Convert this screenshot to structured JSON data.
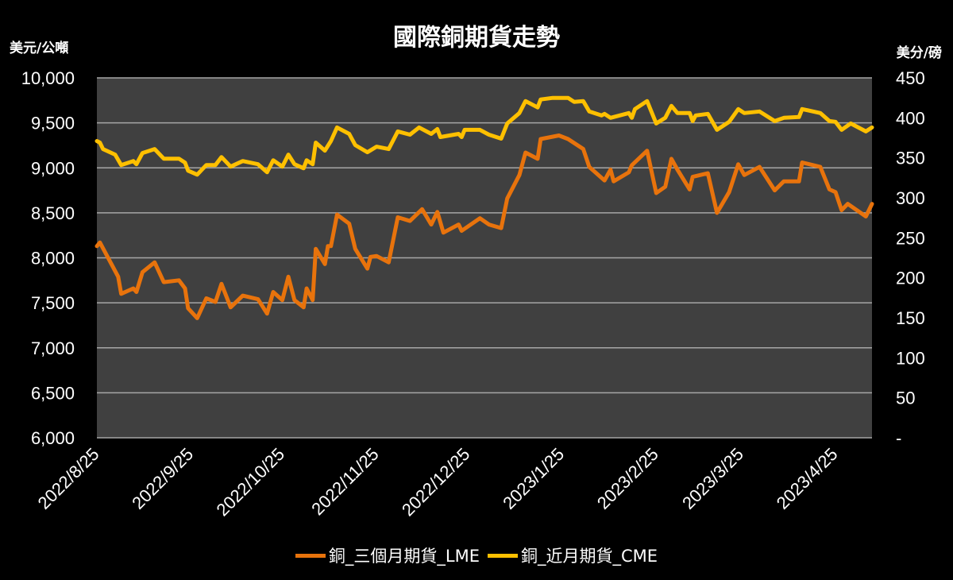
{
  "chart_data": {
    "type": "line",
    "title": "國際銅期貨走勢",
    "y_left_label": "美元/公噸",
    "y_right_label": "美分/磅",
    "x_range": [
      "2022-08-25",
      "2023-05-07"
    ],
    "x_tick_labels": [
      "2022/8/25",
      "2022/9/25",
      "2022/10/25",
      "2022/11/25",
      "2022/12/25",
      "2023/1/25",
      "2023/2/25",
      "2023/3/25",
      "2023/4/25"
    ],
    "x_tick_dates": [
      "2022-08-25",
      "2022-09-25",
      "2022-10-25",
      "2022-11-25",
      "2022-12-25",
      "2023-01-25",
      "2023-02-25",
      "2023-03-25",
      "2023-04-25"
    ],
    "y_left_range": [
      6000,
      10000
    ],
    "y_left_ticks": [
      "6,000",
      "6,500",
      "7,000",
      "7,500",
      "8,000",
      "8,500",
      "9,000",
      "9,500",
      "10,000"
    ],
    "y_right_range": [
      0,
      450
    ],
    "y_right_ticks": [
      "-",
      "50",
      "100",
      "150",
      "200",
      "250",
      "300",
      "350",
      "400",
      "450"
    ],
    "grid": true,
    "legend_position": "bottom",
    "background": "#404040",
    "series": [
      {
        "name": "銅_三個月期貨_LME",
        "axis": "left",
        "color": "#E8730C",
        "x": [
          "2022-08-25",
          "2022-08-26",
          "2022-09-01",
          "2022-09-02",
          "2022-09-06",
          "2022-09-07",
          "2022-09-09",
          "2022-09-13",
          "2022-09-16",
          "2022-09-21",
          "2022-09-23",
          "2022-09-24",
          "2022-09-27",
          "2022-09-30",
          "2022-10-03",
          "2022-10-05",
          "2022-10-08",
          "2022-10-12",
          "2022-10-17",
          "2022-10-20",
          "2022-10-22",
          "2022-10-25",
          "2022-10-27",
          "2022-10-29",
          "2022-11-01",
          "2022-11-02",
          "2022-11-04",
          "2022-11-05",
          "2022-11-08",
          "2022-11-09",
          "2022-11-10",
          "2022-11-12",
          "2022-11-16",
          "2022-11-18",
          "2022-11-22",
          "2022-11-23",
          "2022-11-25",
          "2022-11-29",
          "2022-12-02",
          "2022-12-06",
          "2022-12-10",
          "2022-12-13",
          "2022-12-15",
          "2022-12-17",
          "2022-12-22",
          "2022-12-23",
          "2022-12-29",
          "2023-01-01",
          "2023-01-05",
          "2023-01-07",
          "2023-01-11",
          "2023-01-13",
          "2023-01-17",
          "2023-01-18",
          "2023-01-24",
          "2023-01-27",
          "2023-02-01",
          "2023-02-03",
          "2023-02-08",
          "2023-02-10",
          "2023-02-11",
          "2023-02-16",
          "2023-02-17",
          "2023-02-22",
          "2023-02-25",
          "2023-02-28",
          "2023-03-02",
          "2023-03-04",
          "2023-03-08",
          "2023-03-09",
          "2023-03-14",
          "2023-03-17",
          "2023-03-21",
          "2023-03-24",
          "2023-03-26",
          "2023-03-31",
          "2023-04-05",
          "2023-04-08",
          "2023-04-13",
          "2023-04-14",
          "2023-04-20",
          "2023-04-23",
          "2023-04-25",
          "2023-04-27",
          "2023-04-29",
          "2023-05-05",
          "2023-05-07"
        ],
        "values": [
          8130,
          8170,
          7790,
          7600,
          7660,
          7620,
          7840,
          7950,
          7730,
          7750,
          7660,
          7440,
          7330,
          7550,
          7510,
          7710,
          7450,
          7580,
          7540,
          7380,
          7620,
          7530,
          7790,
          7530,
          7450,
          7660,
          7530,
          8100,
          7930,
          8130,
          8130,
          8480,
          8380,
          8100,
          7880,
          8010,
          8020,
          7950,
          8450,
          8410,
          8540,
          8370,
          8510,
          8280,
          8370,
          8300,
          8440,
          8370,
          8330,
          8660,
          8920,
          9170,
          9100,
          9320,
          9360,
          9320,
          9210,
          9010,
          8860,
          8980,
          8850,
          8950,
          9030,
          9190,
          8720,
          8790,
          9100,
          8980,
          8760,
          8900,
          8940,
          8500,
          8730,
          9040,
          8920,
          9010,
          8750,
          8850,
          8850,
          9060,
          9010,
          8760,
          8730,
          8530,
          8600,
          8460,
          8600
        ]
      },
      {
        "name": "銅_近月期貨_CME",
        "axis": "right",
        "color": "#FFC000",
        "x": [
          "2022-08-25",
          "2022-08-26",
          "2022-08-27",
          "2022-08-31",
          "2022-09-02",
          "2022-09-06",
          "2022-09-07",
          "2022-09-09",
          "2022-09-13",
          "2022-09-16",
          "2022-09-21",
          "2022-09-23",
          "2022-09-24",
          "2022-09-27",
          "2022-09-30",
          "2022-10-03",
          "2022-10-05",
          "2022-10-08",
          "2022-10-12",
          "2022-10-17",
          "2022-10-20",
          "2022-10-22",
          "2022-10-25",
          "2022-10-27",
          "2022-10-29",
          "2022-11-01",
          "2022-11-02",
          "2022-11-04",
          "2022-11-05",
          "2022-11-08",
          "2022-11-10",
          "2022-11-12",
          "2022-11-16",
          "2022-11-18",
          "2022-11-22",
          "2022-11-25",
          "2022-11-29",
          "2022-12-02",
          "2022-12-06",
          "2022-12-09",
          "2022-12-13",
          "2022-12-15",
          "2022-12-16",
          "2022-12-22",
          "2022-12-23",
          "2022-12-24",
          "2022-12-29",
          "2023-01-01",
          "2023-01-05",
          "2023-01-07",
          "2023-01-11",
          "2023-01-13",
          "2023-01-17",
          "2023-01-18",
          "2023-01-22",
          "2023-01-27",
          "2023-01-29",
          "2023-02-01",
          "2023-02-03",
          "2023-02-07",
          "2023-02-08",
          "2023-02-10",
          "2023-02-16",
          "2023-02-17",
          "2023-02-18",
          "2023-02-22",
          "2023-02-25",
          "2023-02-28",
          "2023-03-02",
          "2023-03-04",
          "2023-03-08",
          "2023-03-09",
          "2023-03-10",
          "2023-03-14",
          "2023-03-17",
          "2023-03-21",
          "2023-03-24",
          "2023-03-26",
          "2023-03-31",
          "2023-04-05",
          "2023-04-08",
          "2023-04-13",
          "2023-04-14",
          "2023-04-20",
          "2023-04-23",
          "2023-04-25",
          "2023-04-27",
          "2023-04-30",
          "2023-05-05",
          "2023-05-07"
        ],
        "values": [
          371,
          369,
          361,
          354,
          341,
          346,
          342,
          356,
          361,
          349,
          349,
          344,
          334,
          329,
          341,
          341,
          351,
          339,
          346,
          342,
          332,
          347,
          339,
          354,
          342,
          337,
          347,
          342,
          369,
          359,
          371,
          388,
          380,
          366,
          357,
          364,
          361,
          383,
          379,
          388,
          380,
          386,
          376,
          380,
          376,
          385,
          385,
          379,
          374,
          393,
          406,
          421,
          413,
          423,
          425,
          425,
          420,
          421,
          408,
          403,
          405,
          400,
          406,
          400,
          411,
          421,
          393,
          400,
          415,
          406,
          406,
          396,
          403,
          405,
          385,
          395,
          411,
          406,
          408,
          396,
          400,
          401,
          411,
          406,
          396,
          395,
          385,
          393,
          383,
          388
        ]
      }
    ]
  }
}
